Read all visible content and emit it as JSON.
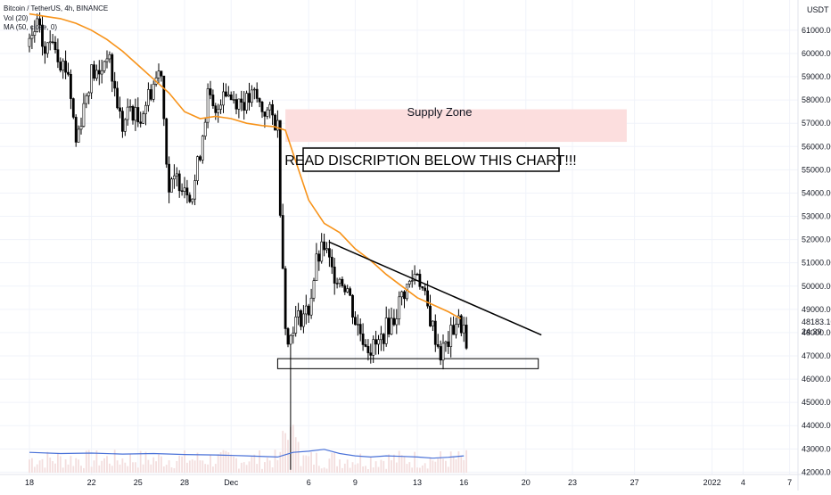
{
  "legend": {
    "title": "Bitcoin / TetherUS, 4h, BINANCE",
    "vol_line": "Vol (20)",
    "ma_line": "MA (50, close, 0)"
  },
  "currency": "USDT",
  "price_label": "48183.10",
  "countdown": "24:39",
  "annotations": {
    "supply_zone": "Supply Zone",
    "note": "READ DISCRIPTION BELOW THIS CHART!!!"
  },
  "colors": {
    "candle": "#000000",
    "ma": "#f7931a",
    "volume_line": "#4a72d8",
    "supply_zone": "#fcdede",
    "trendline": "#000000",
    "volume_bars": "#f3dede"
  },
  "chart_data": {
    "type": "candlestick",
    "ylim": [
      41900,
      62300
    ],
    "y_ticks": [
      42000,
      43000,
      44000,
      45000,
      46000,
      47000,
      48000,
      49000,
      50000,
      51000,
      52000,
      53000,
      54000,
      55000,
      56000,
      57000,
      58000,
      59000,
      60000,
      61000
    ],
    "y_tick_labels": [
      "42000.00",
      "43000.00",
      "44000.00",
      "45000.00",
      "46000.00",
      "47000.00",
      "48000.00",
      "49000.00",
      "50000.00",
      "51000.00",
      "52000.00",
      "53000.00",
      "54000.00",
      "55000.00",
      "56000.00",
      "57000.00",
      "58000.00",
      "59000.00",
      "60000.00",
      "61000.00"
    ],
    "x_ticks": [
      {
        "label": "18",
        "day": 0
      },
      {
        "label": "22",
        "day": 4
      },
      {
        "label": "25",
        "day": 7
      },
      {
        "label": "28",
        "day": 10
      },
      {
        "label": "Dec",
        "day": 13
      },
      {
        "label": "6",
        "day": 18
      },
      {
        "label": "9",
        "day": 21
      },
      {
        "label": "13",
        "day": 25
      },
      {
        "label": "16",
        "day": 28
      },
      {
        "label": "20",
        "day": 32
      },
      {
        "label": "23",
        "day": 35
      },
      {
        "label": "27",
        "day": 39
      },
      {
        "label": "2022",
        "day": 44
      },
      {
        "label": "4",
        "day": 46
      },
      {
        "label": "7",
        "day": 49
      }
    ],
    "close_path": [
      [
        0,
        60300
      ],
      [
        0.5,
        61200
      ],
      [
        1,
        60000
      ],
      [
        1.5,
        60800
      ],
      [
        2,
        59700
      ],
      [
        2.5,
        59200
      ],
      [
        3,
        56200
      ],
      [
        3.5,
        57800
      ],
      [
        4,
        59200
      ],
      [
        4.5,
        59000
      ],
      [
        5,
        60100
      ],
      [
        5.5,
        58400
      ],
      [
        6,
        56800
      ],
      [
        6.5,
        57700
      ],
      [
        7,
        57100
      ],
      [
        7.5,
        57900
      ],
      [
        8,
        58700
      ],
      [
        8.5,
        59400
      ],
      [
        8.7,
        56800
      ],
      [
        9,
        54100
      ],
      [
        9.5,
        54600
      ],
      [
        10,
        54400
      ],
      [
        10.5,
        53900
      ],
      [
        11,
        55800
      ],
      [
        11.5,
        58200
      ],
      [
        12,
        57200
      ],
      [
        12.5,
        58600
      ],
      [
        13,
        58100
      ],
      [
        13.5,
        58000
      ],
      [
        14,
        57900
      ],
      [
        14.5,
        58200
      ],
      [
        15,
        57600
      ],
      [
        15.5,
        57400
      ],
      [
        16,
        56900
      ],
      [
        16.2,
        52800
      ],
      [
        16.6,
        47200
      ],
      [
        17,
        48400
      ],
      [
        17.5,
        48700
      ],
      [
        18,
        49000
      ],
      [
        18.5,
        51000
      ],
      [
        19,
        51700
      ],
      [
        19.5,
        50600
      ],
      [
        20,
        50400
      ],
      [
        20.5,
        49900
      ],
      [
        21,
        48500
      ],
      [
        21.5,
        47800
      ],
      [
        22,
        47300
      ],
      [
        22.5,
        47500
      ],
      [
        23,
        48200
      ],
      [
        23.5,
        48600
      ],
      [
        24,
        49600
      ],
      [
        24.5,
        50100
      ],
      [
        25,
        50700
      ],
      [
        25.5,
        49400
      ],
      [
        26,
        48200
      ],
      [
        26.5,
        47100
      ],
      [
        27,
        47600
      ],
      [
        27.5,
        48500
      ],
      [
        28,
        48200
      ],
      [
        28.2,
        46900
      ]
    ],
    "ma_path": [
      [
        0,
        61700
      ],
      [
        1,
        61600
      ],
      [
        2,
        61500
      ],
      [
        3,
        61300
      ],
      [
        4,
        61000
      ],
      [
        5,
        60600
      ],
      [
        6,
        60100
      ],
      [
        7,
        59500
      ],
      [
        8,
        58900
      ],
      [
        9,
        58300
      ],
      [
        10,
        57500
      ],
      [
        11,
        57200
      ],
      [
        12,
        57300
      ],
      [
        13,
        57200
      ],
      [
        14,
        57000
      ],
      [
        15,
        56900
      ],
      [
        15.8,
        56850
      ],
      [
        16.5,
        56700
      ],
      [
        17,
        55700
      ],
      [
        18,
        53700
      ],
      [
        19,
        52700
      ],
      [
        20,
        52300
      ],
      [
        21,
        51600
      ],
      [
        22,
        51100
      ],
      [
        23,
        50500
      ],
      [
        24,
        50000
      ],
      [
        25,
        49500
      ],
      [
        26,
        49200
      ],
      [
        27,
        48900
      ],
      [
        27.8,
        48600
      ]
    ],
    "volume_path": [
      [
        0,
        42850
      ],
      [
        2,
        42800
      ],
      [
        4,
        42820
      ],
      [
        6,
        42780
      ],
      [
        8,
        42800
      ],
      [
        10,
        42760
      ],
      [
        12,
        42740
      ],
      [
        14,
        42700
      ],
      [
        16,
        42650
      ],
      [
        17,
        42850
      ],
      [
        18,
        42900
      ],
      [
        19,
        42980
      ],
      [
        20,
        42800
      ],
      [
        21,
        42700
      ],
      [
        22,
        42650
      ],
      [
        23,
        42700
      ],
      [
        24,
        42680
      ],
      [
        25,
        42650
      ],
      [
        26,
        42600
      ],
      [
        27,
        42640
      ],
      [
        28,
        42700
      ]
    ],
    "supply_zone": {
      "day_start": 16.5,
      "day_end": 38.5,
      "y_low": 56200,
      "y_high": 57600
    },
    "support_box": {
      "day_start": 16,
      "day_end": 32.8,
      "y_low": 46450,
      "y_high": 46880
    },
    "descending_trendline": [
      [
        19.3,
        51900
      ],
      [
        33,
        47900
      ]
    ],
    "wick_low": {
      "day": 16.9,
      "value": 42100
    }
  }
}
